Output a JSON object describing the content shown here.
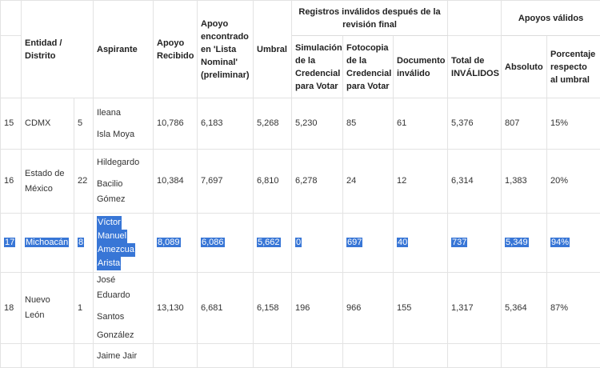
{
  "headers": {
    "entidad": "Entidad / Distrito",
    "aspirante": "Aspirante",
    "apoyo_recibido": "Apoyo Recibido",
    "apoyo_encontrado": "Apoyo encontrado en 'Lista Nominal' (preliminar)",
    "umbral": "Umbral",
    "invalidos_group": "Registros inválidos después de la revisión final",
    "simulacion": "Simulación de la Credencial para Votar",
    "fotocopia": "Fotocopia de la Credencial para Votar",
    "documento": "Documento inválido",
    "total_invalidos": "Total de INVÁLIDOS",
    "validos_group": "Apoyos válidos",
    "absoluto": "Absoluto",
    "porcentaje": "Porcentaje respecto al umbral"
  },
  "rows": [
    {
      "num": "15",
      "entidad": "CDMX",
      "distrito": "5",
      "aspirante": [
        "Ileana",
        "Isla Moya"
      ],
      "recibido": "10,786",
      "encontrado": "6,183",
      "umbral": "5,268",
      "simulacion": "5,230",
      "fotocopia": "85",
      "documento": "61",
      "total": "5,376",
      "absoluto": "807",
      "porcentaje": "15%"
    },
    {
      "num": "16",
      "entidad": [
        "Estado de",
        "México"
      ],
      "distrito": "22",
      "aspirante": [
        "Hildegardo",
        "Bacilio",
        "Gómez"
      ],
      "recibido": "10,384",
      "encontrado": "7,697",
      "umbral": "6,810",
      "simulacion": "6,278",
      "fotocopia": "24",
      "documento": "12",
      "total": "6,314",
      "absoluto": "1,383",
      "porcentaje": "20%"
    },
    {
      "num": "17",
      "entidad": "Michoacán",
      "distrito": "8",
      "aspirante": [
        "Víctor",
        "Manuel",
        "Amezcua",
        "Arista"
      ],
      "recibido": "8,089",
      "encontrado": "6,086",
      "umbral": "5,662",
      "simulacion": "0",
      "fotocopia": "697",
      "documento": "40",
      "total": "737",
      "absoluto": "5,349",
      "porcentaje": "94%"
    },
    {
      "num": "18",
      "entidad": [
        "Nuevo",
        "León"
      ],
      "distrito": "1",
      "aspirante": [
        "José Eduardo",
        "Santos",
        "González"
      ],
      "recibido": "13,130",
      "encontrado": "6,681",
      "umbral": "6,158",
      "simulacion": "196",
      "fotocopia": "966",
      "documento": "155",
      "total": "1,317",
      "absoluto": "5,364",
      "porcentaje": "87%"
    },
    {
      "aspirante_partial": "Jaime Jair"
    }
  ]
}
